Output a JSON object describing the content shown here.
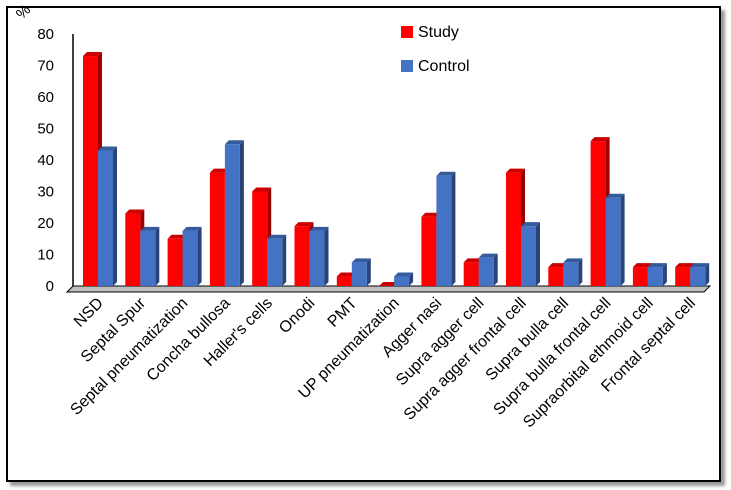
{
  "chart_data": {
    "type": "bar",
    "title": "",
    "ylabel": "%",
    "xlabel": "",
    "ylim": [
      0,
      80
    ],
    "yticks": [
      0,
      10,
      20,
      30,
      40,
      50,
      60,
      70,
      80
    ],
    "grid": false,
    "legend_position": "top-right",
    "categories": [
      "NSD",
      "Septal Spur",
      "Septal pneumatization",
      "Concha bullosa",
      "Haller's cells",
      "Onodi",
      "PMT",
      "UP pneumatization",
      "Agger nasi",
      "Supra agger cell",
      "Supra agger frontal cell",
      "Supra bulla cell",
      "Supra bulla frontal cell",
      "Supraorbital ethmoid cell",
      "Frontal septal cell"
    ],
    "series": [
      {
        "name": "Study",
        "color": "#ff0000",
        "values": [
          73,
          23,
          15,
          36,
          30,
          19,
          3,
          0,
          22,
          7.5,
          36,
          6,
          46,
          6,
          6
        ]
      },
      {
        "name": "Control",
        "color": "#4472c4",
        "values": [
          43,
          17.5,
          17.5,
          45,
          15,
          17.5,
          7.5,
          3,
          35,
          9,
          19,
          7.5,
          28,
          6,
          6
        ]
      }
    ]
  }
}
